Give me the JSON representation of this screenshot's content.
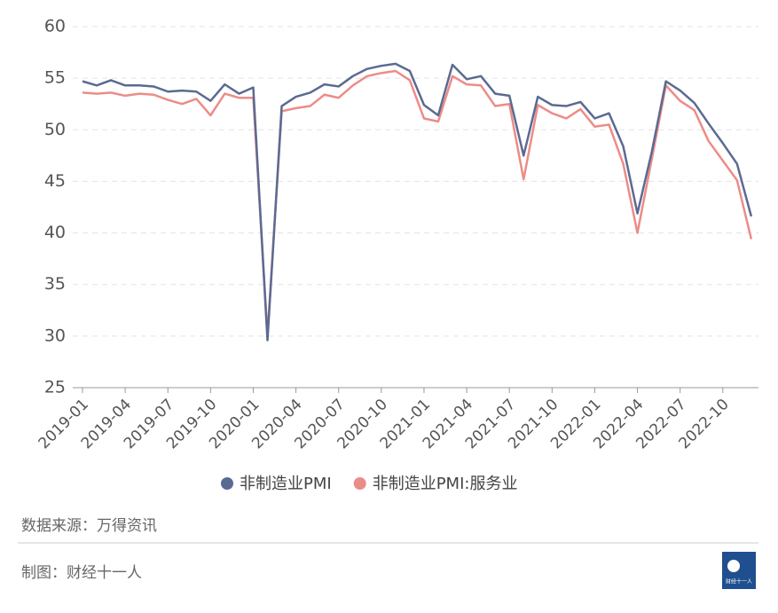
{
  "chart_data": {
    "type": "line",
    "categories": [
      "2019-01",
      null,
      null,
      "2019-04",
      null,
      null,
      "2019-07",
      null,
      null,
      "2019-10",
      null,
      null,
      "2020-01",
      null,
      null,
      "2020-04",
      null,
      null,
      "2020-07",
      null,
      null,
      "2020-10",
      null,
      null,
      "2021-01",
      null,
      null,
      "2021-04",
      null,
      null,
      "2021-07",
      null,
      null,
      "2021-10",
      null,
      null,
      "2022-01",
      null,
      null,
      "2022-04",
      null,
      null,
      "2022-07",
      null,
      null,
      "2022-10",
      null,
      null
    ],
    "series": [
      {
        "name": "非制造业PMI",
        "color": "#5b6a92",
        "values": [
          54.7,
          54.3,
          54.8,
          54.3,
          54.3,
          54.2,
          53.7,
          53.8,
          53.7,
          52.8,
          54.4,
          53.5,
          54.1,
          29.6,
          52.3,
          53.2,
          53.6,
          54.4,
          54.2,
          55.2,
          55.9,
          56.2,
          56.4,
          55.7,
          52.4,
          51.4,
          56.3,
          54.9,
          55.2,
          53.5,
          53.3,
          47.5,
          53.2,
          52.4,
          52.3,
          52.7,
          51.1,
          51.6,
          48.4,
          41.9,
          47.8,
          54.7,
          53.8,
          52.6,
          50.6,
          48.7,
          46.7,
          41.6
        ]
      },
      {
        "name": "非制造业PMI:服务业",
        "color": "#ec8c88",
        "values": [
          53.6,
          53.5,
          53.6,
          53.3,
          53.5,
          53.4,
          52.9,
          52.5,
          53.0,
          51.4,
          53.5,
          53.1,
          53.1,
          30.1,
          51.8,
          52.1,
          52.3,
          53.4,
          53.1,
          54.3,
          55.2,
          55.5,
          55.7,
          54.8,
          51.1,
          50.8,
          55.2,
          54.4,
          54.3,
          52.3,
          52.5,
          45.2,
          52.4,
          51.6,
          51.1,
          52.0,
          50.3,
          50.5,
          46.7,
          40.0,
          47.1,
          54.3,
          52.8,
          51.9,
          48.9,
          47.0,
          45.1,
          39.4
        ]
      }
    ],
    "ylim": [
      25,
      60
    ],
    "yticks": [
      25,
      30,
      35,
      40,
      45,
      50,
      55,
      60
    ],
    "grid": true,
    "legend": "bottom"
  },
  "footer": {
    "source": "数据来源：万得资讯",
    "credit": "制图：财经十一人",
    "logo_text": "财经十一人"
  }
}
